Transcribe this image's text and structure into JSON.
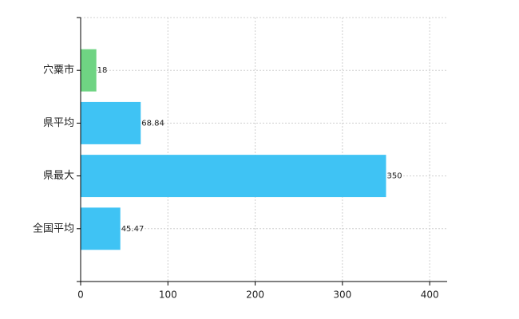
{
  "chart_data": {
    "type": "bar",
    "orientation": "horizontal",
    "categories": [
      "穴粟市",
      "県平均",
      "県最大",
      "全国平均"
    ],
    "values": [
      18,
      68.84,
      350,
      45.47
    ],
    "colors": [
      "#6fd483",
      "#3fc3f4",
      "#3fc3f4",
      "#3fc3f4"
    ],
    "xlim": [
      0,
      420
    ],
    "xticks": [
      0,
      100,
      200,
      300,
      400
    ],
    "grid": true,
    "data_labels": true
  }
}
